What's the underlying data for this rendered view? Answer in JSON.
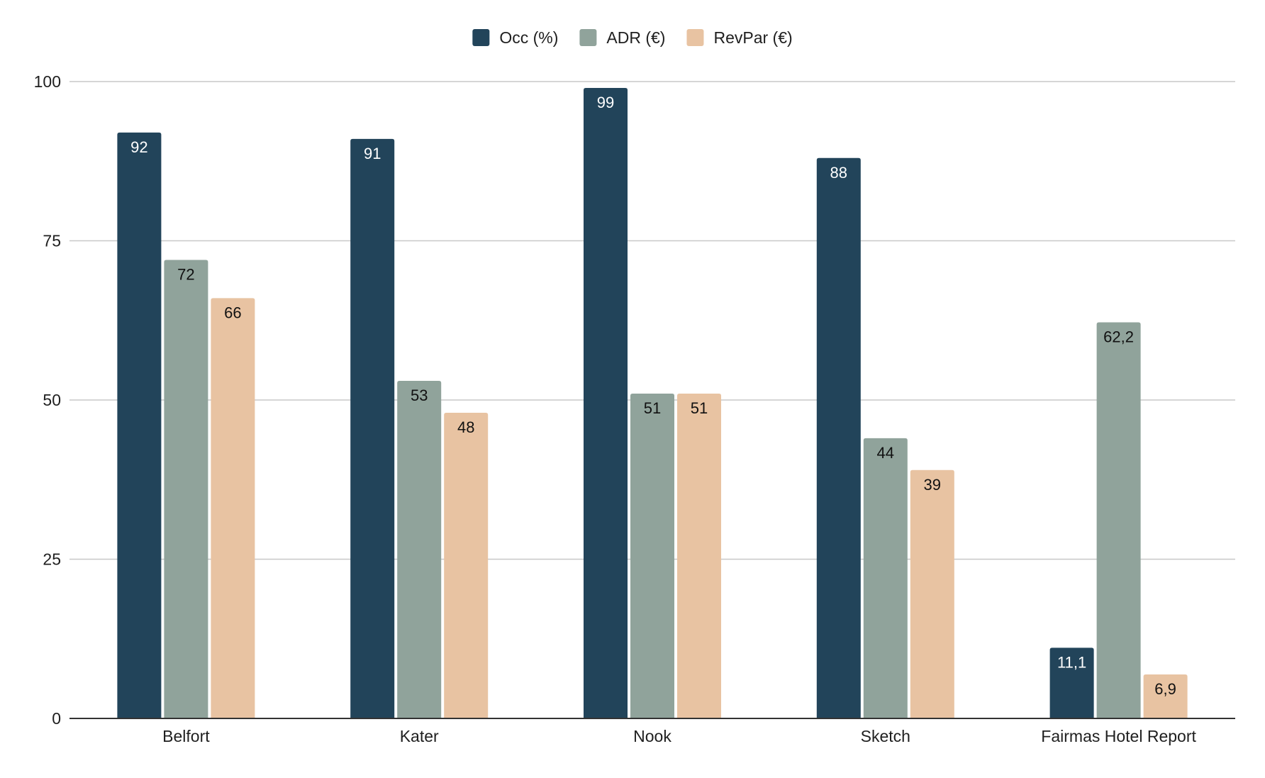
{
  "chart_data": {
    "type": "bar",
    "title": "",
    "xlabel": "",
    "ylabel": "",
    "categories": [
      "Belfort",
      "Kater",
      "Nook",
      "Sketch",
      "Fairmas Hotel Report"
    ],
    "series": [
      {
        "name": "Occ (%)",
        "color": "#22445a",
        "label_color": "#ffffff",
        "values": [
          92,
          91,
          99,
          88,
          11.1
        ],
        "labels": [
          "92",
          "91",
          "99",
          "88",
          "11,1"
        ]
      },
      {
        "name": "ADR (€)",
        "color": "#90a39b",
        "label_color": "#111111",
        "values": [
          72,
          53,
          51,
          44,
          62.2
        ],
        "labels": [
          "72",
          "53",
          "51",
          "44",
          "62,2"
        ]
      },
      {
        "name": "RevPar (€)",
        "color": "#e8c3a2",
        "label_color": "#111111",
        "values": [
          66,
          48,
          51,
          39,
          6.9
        ],
        "labels": [
          "66",
          "48",
          "51",
          "39",
          "6,9"
        ]
      }
    ],
    "ylim": [
      0,
      100
    ],
    "yticks": [
      0,
      25,
      50,
      75,
      100
    ],
    "grid": true,
    "legend_position": "top-center",
    "colors": {
      "grid": "#c8c8c8",
      "axis": "#333333"
    }
  }
}
